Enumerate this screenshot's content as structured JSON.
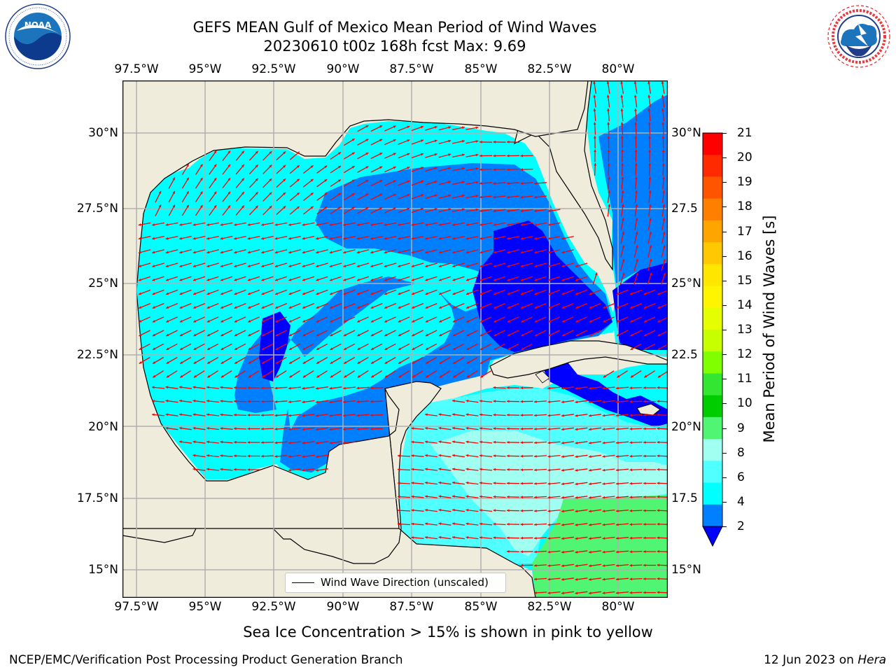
{
  "titles": {
    "line1": "GEFS MEAN Gulf of Mexico Mean Period of Wind Waves",
    "line2": "20230610 t00z 168h fcst   Max: 9.69"
  },
  "logos": {
    "left": "NOAA",
    "left_ring": "NATIONAL OCEANIC AND ATMOSPHERIC ADMINISTRATION · U.S. DEPARTMENT OF COMMERCE",
    "right_ring": "NATIONAL WEATHER SERVICE"
  },
  "axes": {
    "lon_labels": [
      "97.5°W",
      "95°W",
      "92.5°W",
      "90°W",
      "87.5°W",
      "85°W",
      "82.5°W",
      "80°W"
    ],
    "lat_labels_left": [
      "30°N",
      "27.5°N",
      "25°N",
      "22.5°N",
      "20°N",
      "17.5°N",
      "15°N"
    ],
    "lat_labels_right": [
      "30°N",
      "27.5",
      "25°N",
      "22.5",
      "20°N",
      "17.5",
      "15°N"
    ]
  },
  "colorbar": {
    "title": "Mean Period of Wind Waves [s]",
    "ticks": [
      "21",
      "20",
      "19",
      "18",
      "17",
      "16",
      "15",
      "14",
      "13",
      "12",
      "11",
      "10",
      "9",
      "8",
      "6",
      "4",
      "2"
    ],
    "colors": [
      "#ff0000",
      "#ff2a00",
      "#ff5500",
      "#ff7f00",
      "#ffa500",
      "#ffc800",
      "#ffe600",
      "#fff500",
      "#e6ff00",
      "#c8ff00",
      "#7fff00",
      "#32e632",
      "#00cd00",
      "#50f573",
      "#a0fff0",
      "#50ffff",
      "#00ffff",
      "#0080ff"
    ],
    "extend_color": "#0000ff"
  },
  "map_colors": {
    "land": "#efecdc",
    "very_light": "#a0fff0",
    "cyan_light": "#50ffff",
    "cyan": "#00ffff",
    "blue": "#0080ff",
    "deep_blue": "#0000ff",
    "green": "#50f573",
    "arrow": "#ff0000",
    "grid": "#b0b0b0"
  },
  "legend": {
    "label": "Wind Wave Direction (unscaled)"
  },
  "notes": {
    "sea_ice": "Sea Ice Concentration > 15% is shown in pink to yellow"
  },
  "footer": {
    "left": "NCEP/EMC/Verification Post Processing Product Generation Branch",
    "date": "12 Jun 2023 on ",
    "machine": "Hera"
  }
}
